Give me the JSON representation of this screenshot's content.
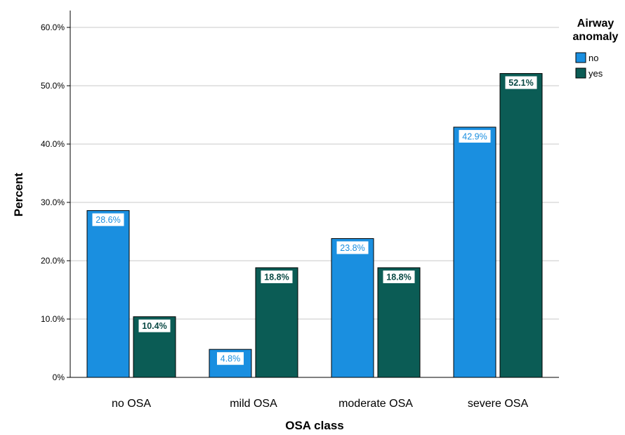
{
  "chart_data": {
    "type": "bar",
    "title": "",
    "xlabel": "OSA class",
    "ylabel": "Percent",
    "categories": [
      "no OSA",
      "mild OSA",
      "moderate OSA",
      "severe OSA"
    ],
    "series": [
      {
        "name": "no",
        "color": "#1a8fe0",
        "label_color": "#1a8fe0",
        "values": [
          28.6,
          4.8,
          23.8,
          42.9
        ],
        "data_labels": [
          "28.6%",
          "4.8%",
          "23.8%",
          "42.9%"
        ]
      },
      {
        "name": "yes",
        "color": "#0b5c55",
        "label_color": "#0b4a45",
        "values": [
          10.4,
          18.8,
          18.8,
          52.1
        ],
        "data_labels": [
          "10.4%",
          "18.8%",
          "18.8%",
          "52.1%"
        ]
      }
    ],
    "ylim": [
      0,
      60
    ],
    "yticks": [
      0,
      10,
      20,
      30,
      40,
      50,
      60
    ],
    "ytick_labels": [
      "0%",
      "10.0%",
      "20.0%",
      "30.0%",
      "40.0%",
      "50.0%",
      "60.0%"
    ],
    "grid": true,
    "legend": {
      "title_line1": "Airway",
      "title_line2": "anomaly",
      "position": "top-right"
    }
  }
}
